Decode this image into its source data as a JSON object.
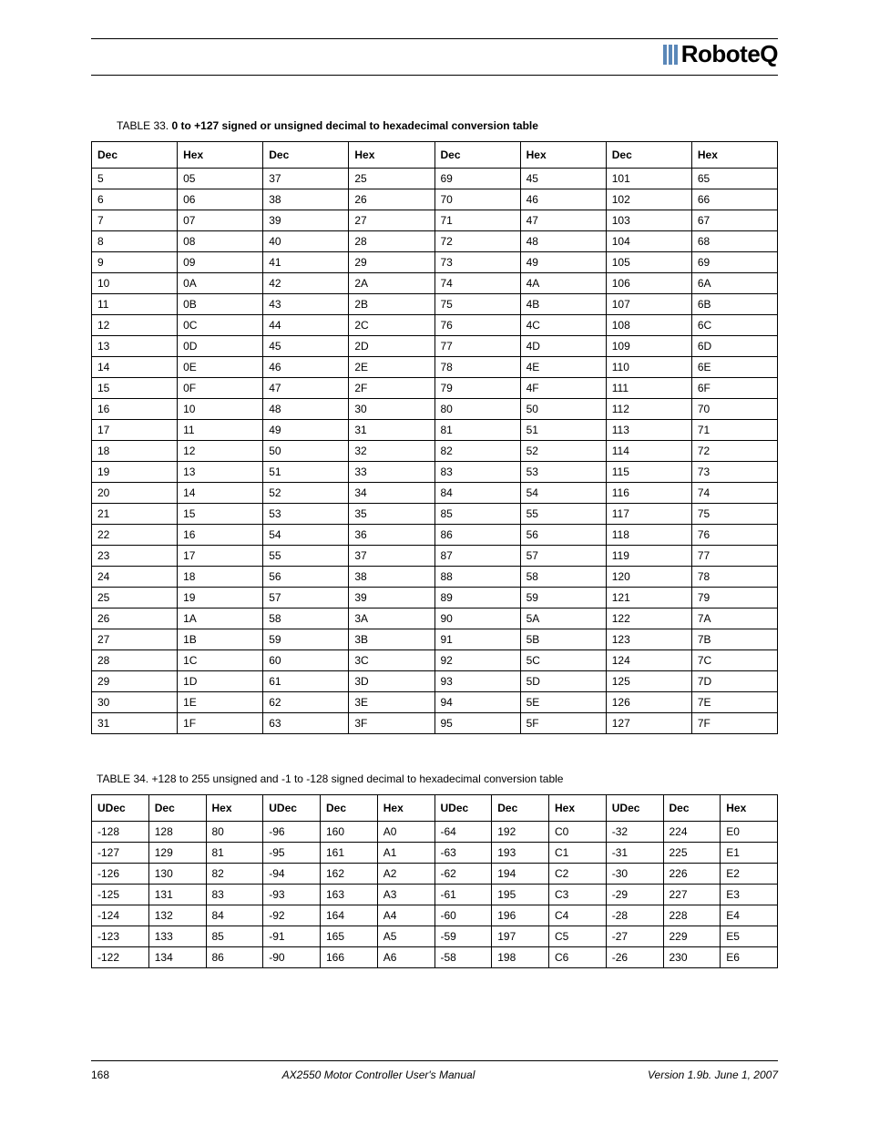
{
  "logo_text": "RoboteQ",
  "table33": {
    "caption_label": "TABLE 33. ",
    "caption_text": "0 to +127 signed or unsigned decimal to hexadecimal conversion table",
    "headers": [
      "Dec",
      "Hex",
      "Dec",
      "Hex",
      "Dec",
      "Hex",
      "Dec",
      "Hex"
    ],
    "rows": [
      [
        "5",
        "05",
        "37",
        "25",
        "69",
        "45",
        "101",
        "65"
      ],
      [
        "6",
        "06",
        "38",
        "26",
        "70",
        "46",
        "102",
        "66"
      ],
      [
        "7",
        "07",
        "39",
        "27",
        "71",
        "47",
        "103",
        "67"
      ],
      [
        "8",
        "08",
        "40",
        "28",
        "72",
        "48",
        "104",
        "68"
      ],
      [
        "9",
        "09",
        "41",
        "29",
        "73",
        "49",
        "105",
        "69"
      ],
      [
        "10",
        "0A",
        "42",
        "2A",
        "74",
        "4A",
        "106",
        "6A"
      ],
      [
        "11",
        "0B",
        "43",
        "2B",
        "75",
        "4B",
        "107",
        "6B"
      ],
      [
        "12",
        "0C",
        "44",
        "2C",
        "76",
        "4C",
        "108",
        "6C"
      ],
      [
        "13",
        "0D",
        "45",
        "2D",
        "77",
        "4D",
        "109",
        "6D"
      ],
      [
        "14",
        "0E",
        "46",
        "2E",
        "78",
        "4E",
        "110",
        "6E"
      ],
      [
        "15",
        "0F",
        "47",
        "2F",
        "79",
        "4F",
        "111",
        "6F"
      ],
      [
        "16",
        "10",
        "48",
        "30",
        "80",
        "50",
        "112",
        "70"
      ],
      [
        "17",
        "11",
        "49",
        "31",
        "81",
        "51",
        "113",
        "71"
      ],
      [
        "18",
        "12",
        "50",
        "32",
        "82",
        "52",
        "114",
        "72"
      ],
      [
        "19",
        "13",
        "51",
        "33",
        "83",
        "53",
        "115",
        "73"
      ],
      [
        "20",
        "14",
        "52",
        "34",
        "84",
        "54",
        "116",
        "74"
      ],
      [
        "21",
        "15",
        "53",
        "35",
        "85",
        "55",
        "117",
        "75"
      ],
      [
        "22",
        "16",
        "54",
        "36",
        "86",
        "56",
        "118",
        "76"
      ],
      [
        "23",
        "17",
        "55",
        "37",
        "87",
        "57",
        "119",
        "77"
      ],
      [
        "24",
        "18",
        "56",
        "38",
        "88",
        "58",
        "120",
        "78"
      ],
      [
        "25",
        "19",
        "57",
        "39",
        "89",
        "59",
        "121",
        "79"
      ],
      [
        "26",
        "1A",
        "58",
        "3A",
        "90",
        "5A",
        "122",
        "7A"
      ],
      [
        "27",
        "1B",
        "59",
        "3B",
        "91",
        "5B",
        "123",
        "7B"
      ],
      [
        "28",
        "1C",
        "60",
        "3C",
        "92",
        "5C",
        "124",
        "7C"
      ],
      [
        "29",
        "1D",
        "61",
        "3D",
        "93",
        "5D",
        "125",
        "7D"
      ],
      [
        "30",
        "1E",
        "62",
        "3E",
        "94",
        "5E",
        "126",
        "7E"
      ],
      [
        "31",
        "1F",
        "63",
        "3F",
        "95",
        "5F",
        "127",
        "7F"
      ]
    ]
  },
  "table34": {
    "caption_label": "TABLE 34. ",
    "caption_text": "+128 to 255 unsigned and -1 to -128 signed decimal to hexadecimal conversion table",
    "headers": [
      "UDec",
      "Dec",
      "Hex",
      "UDec",
      "Dec",
      "Hex",
      "UDec",
      "Dec",
      "Hex",
      "UDec",
      "Dec",
      "Hex"
    ],
    "rows": [
      [
        "-128",
        "128",
        "80",
        "-96",
        "160",
        "A0",
        "-64",
        "192",
        "C0",
        "-32",
        "224",
        "E0"
      ],
      [
        "-127",
        "129",
        "81",
        "-95",
        "161",
        "A1",
        "-63",
        "193",
        "C1",
        "-31",
        "225",
        "E1"
      ],
      [
        "-126",
        "130",
        "82",
        "-94",
        "162",
        "A2",
        "-62",
        "194",
        "C2",
        "-30",
        "226",
        "E2"
      ],
      [
        "-125",
        "131",
        "83",
        "-93",
        "163",
        "A3",
        "-61",
        "195",
        "C3",
        "-29",
        "227",
        "E3"
      ],
      [
        "-124",
        "132",
        "84",
        "-92",
        "164",
        "A4",
        "-60",
        "196",
        "C4",
        "-28",
        "228",
        "E4"
      ],
      [
        "-123",
        "133",
        "85",
        "-91",
        "165",
        "A5",
        "-59",
        "197",
        "C5",
        "-27",
        "229",
        "E5"
      ],
      [
        "-122",
        "134",
        "86",
        "-90",
        "166",
        "A6",
        "-58",
        "198",
        "C6",
        "-26",
        "230",
        "E6"
      ]
    ]
  },
  "footer": {
    "page": "168",
    "center": "AX2550 Motor Controller User's Manual",
    "right": "Version 1.9b. June 1, 2007"
  }
}
